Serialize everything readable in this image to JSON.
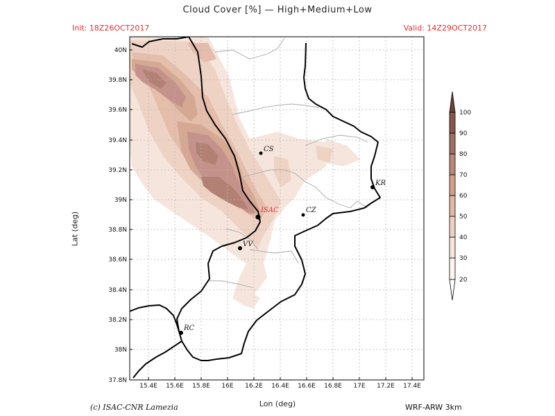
{
  "header": {
    "title": "Cloud Cover [%] — High+Medium+Low",
    "init": "Init: 18Z26OCT2017",
    "valid": "Valid: 14Z29OCT2017"
  },
  "axes": {
    "xlabel": "Lon (deg)",
    "ylabel": "Lat (deg)",
    "xticks": [
      "15.4E",
      "15.6E",
      "15.8E",
      "16E",
      "16.2E",
      "16.4E",
      "16.6E",
      "16.8E",
      "17E",
      "17.2E",
      "17.4E"
    ],
    "yticks": [
      "37.8N",
      "38N",
      "38.2N",
      "38.4N",
      "38.6N",
      "38.8N",
      "39N",
      "39.2N",
      "39.4N",
      "39.6N",
      "39.8N",
      "40N"
    ]
  },
  "cities": [
    {
      "label": "CS",
      "color": "#111111"
    },
    {
      "label": "KR",
      "color": "#111111"
    },
    {
      "label": "ISAC",
      "color": "#e03030"
    },
    {
      "label": "CZ",
      "color": "#111111"
    },
    {
      "label": "VV",
      "color": "#111111"
    },
    {
      "label": "RC",
      "color": "#111111"
    }
  ],
  "colorbar": {
    "levels": [
      "20",
      "30",
      "40",
      "50",
      "60",
      "70",
      "80",
      "90",
      "100"
    ],
    "colors": [
      "#fdf6f1",
      "#f7e4da",
      "#efd0c1",
      "#e2b7a5",
      "#d1a08c",
      "#bb8777",
      "#a16e62",
      "#87574e",
      "#6b423b"
    ]
  },
  "footer": {
    "credit": "(c) ISAC-CNR Lamezia",
    "model": "WRF-ARW 3km"
  }
}
